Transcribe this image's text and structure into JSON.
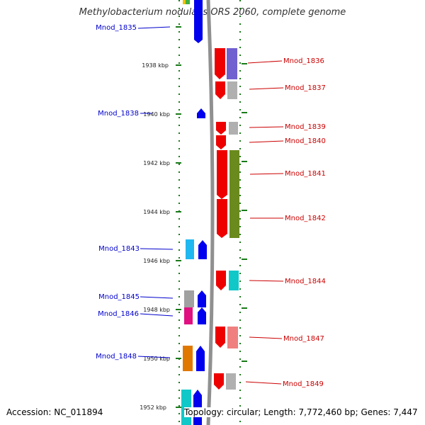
{
  "title": "Methylobacterium nodulans ORS 2060, complete genome",
  "accession": "Accession: NC_011894",
  "summary": "Topology: circular; Length: 7,772,460 bp; Genes: 7,447",
  "colors": {
    "backbone": "#808080",
    "axis": "#1a7a1a",
    "left_label": "#0000cc",
    "right_label": "#cc0000"
  },
  "kbp_ticks": [
    "1938 kbp",
    "1940 kbp",
    "1942 kbp",
    "1944 kbp",
    "1946 kbp",
    "1948 kbp",
    "1950 kbp",
    "1952 kbp"
  ],
  "left_labels": [
    "Mnod_1835",
    "Mnod_1838",
    "Mnod_1843",
    "Mnod_1845",
    "Mnod_1846",
    "Mnod_1848"
  ],
  "right_labels": [
    "Mnod_1836",
    "Mnod_1837",
    "Mnod_1839",
    "Mnod_1840",
    "Mnod_1841",
    "Mnod_1842",
    "Mnod_1844",
    "Mnod_1847",
    "Mnod_1849"
  ]
}
